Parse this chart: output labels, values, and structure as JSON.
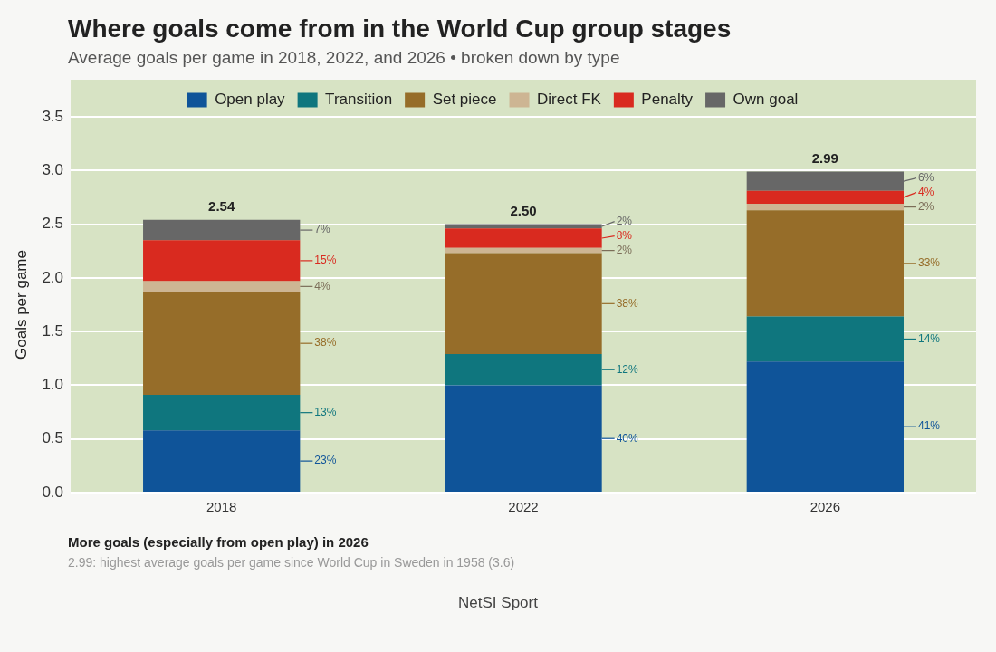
{
  "chart_data": {
    "type": "bar",
    "title": "Where goals come from in the World Cup group stages",
    "subtitle": "Average goals per game in 2018, 2022, and 2026 • broken down by type",
    "ylabel": "Goals per game",
    "categories": [
      "2018",
      "2022",
      "2026"
    ],
    "stacked": true,
    "grid": "y",
    "legend": "top",
    "ylim": [
      0,
      3.5
    ],
    "yticks": [
      {
        "value": 0,
        "label": "0.0"
      },
      {
        "value": 0.5,
        "label": "0.5"
      },
      {
        "value": 1,
        "label": "1.0"
      },
      {
        "value": 1.5,
        "label": "1.5"
      },
      {
        "value": 2,
        "label": "2.0"
      },
      {
        "value": 2.5,
        "label": "2.5"
      },
      {
        "value": 3,
        "label": "3.0"
      },
      {
        "value": 3.5,
        "label": "3.5"
      }
    ],
    "series": [
      {
        "name": "Open play",
        "color": "#0f5499",
        "values": [
          0.58,
          1.0,
          1.22
        ]
      },
      {
        "name": "Transition",
        "color": "#0f767e",
        "values": [
          0.33,
          0.29,
          0.42
        ]
      },
      {
        "name": "Set piece",
        "color": "#966d29",
        "values": [
          0.96,
          0.94,
          0.99
        ]
      },
      {
        "name": "Direct FK",
        "color": "#cdb593",
        "values": [
          0.1,
          0.05,
          0.06
        ]
      },
      {
        "name": "Penalty",
        "color": "#d92a1f",
        "values": [
          0.38,
          0.18,
          0.12
        ]
      },
      {
        "name": "Own goal",
        "color": "#676767",
        "values": [
          0.19,
          0.04,
          0.18
        ]
      }
    ],
    "totals": [
      "2.54",
      "2.50",
      "2.99"
    ],
    "annotations": [
      "23%",
      "13%",
      "38%",
      "4%",
      "15%",
      "7%",
      "40%",
      "12%",
      "38%",
      "2%",
      "8%",
      "2%",
      "41%",
      "14%",
      "33%",
      "2%",
      "4%",
      "6%",
      "More goals (especially from open play) in 2026",
      "2.99: highest average goals per game since World Cup in Sweden in 1958 (3.6)",
      "NetSI Sport"
    ]
  }
}
